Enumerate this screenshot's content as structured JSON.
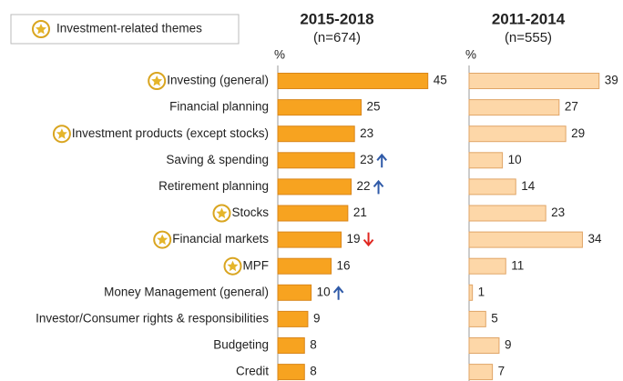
{
  "chart_data": {
    "type": "bar",
    "legend": "Investment-related themes",
    "unit_label": "%",
    "categories": [
      "Investing (general)",
      "Financial planning",
      "Investment products (except stocks)",
      "Saving & spending",
      "Retirement planning",
      "Stocks",
      "Financial markets",
      "MPF",
      "Money Management (general)",
      "Investor/Consumer rights & responsibilities",
      "Budgeting",
      "Credit"
    ],
    "highlight": [
      true,
      false,
      true,
      false,
      false,
      true,
      true,
      true,
      false,
      false,
      false,
      false
    ],
    "xlim": [
      0,
      50
    ],
    "series": [
      {
        "name": "2015-2018",
        "subtitle": "(n=674)",
        "color": "#f7a320",
        "stroke": "#d9861a",
        "values": [
          45,
          25,
          23,
          23,
          22,
          21,
          19,
          16,
          10,
          9,
          8,
          8
        ],
        "trend": [
          null,
          null,
          null,
          "up",
          "up",
          null,
          "down",
          null,
          "up",
          null,
          null,
          null
        ]
      },
      {
        "name": "2011-2014",
        "subtitle": "(n=555)",
        "color": "#fdd7a8",
        "stroke": "#e0a567",
        "values": [
          39,
          27,
          29,
          10,
          14,
          23,
          34,
          11,
          1,
          5,
          9,
          7
        ]
      }
    ]
  }
}
